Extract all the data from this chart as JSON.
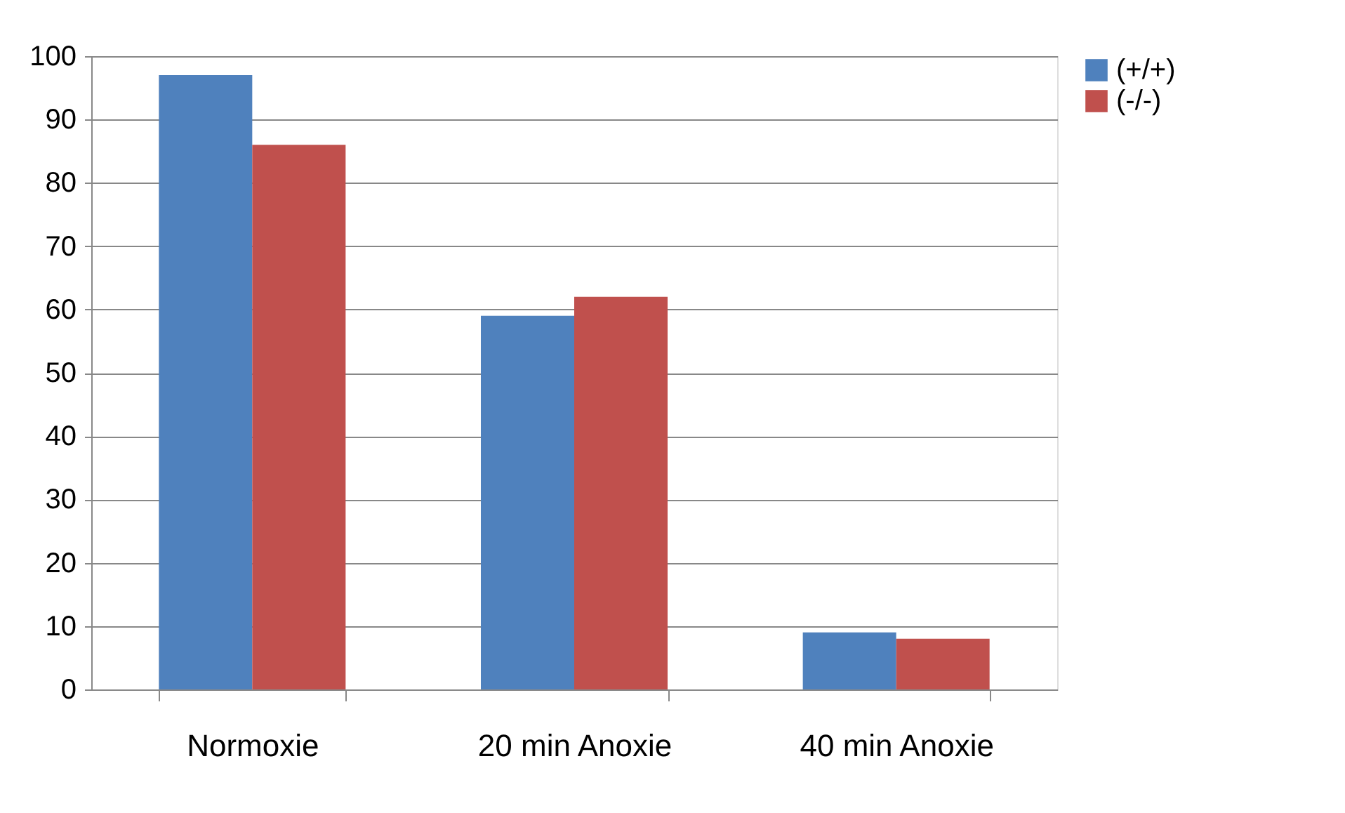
{
  "chart_data": {
    "type": "bar",
    "categories": [
      "Normoxie",
      "20   min Anoxie",
      "40   min Anoxie"
    ],
    "series": [
      {
        "name": "(+/+)",
        "color": "#4f81bd",
        "values": [
          97,
          59,
          9
        ]
      },
      {
        "name": "(-/-)",
        "color": "#c0504d",
        "values": [
          86,
          62,
          8
        ]
      }
    ],
    "ylim": [
      0,
      100
    ],
    "yticks": [
      0,
      10,
      20,
      30,
      40,
      50,
      60,
      70,
      80,
      90,
      100
    ],
    "grid": "y",
    "legend": "right"
  }
}
